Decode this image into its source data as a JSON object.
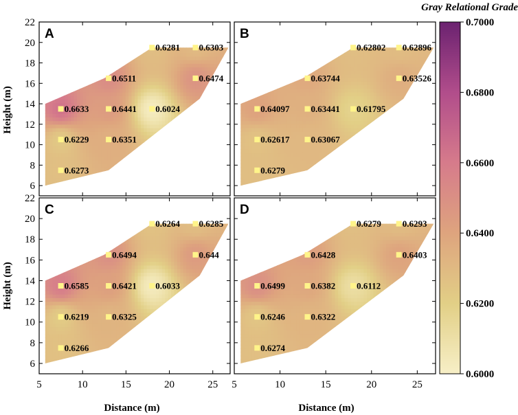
{
  "chart_data": {
    "type": "heatmap",
    "colorbar": {
      "title": "Gray Relational Grade",
      "min": 0.6,
      "max": 0.7,
      "ticks": [
        0.6,
        0.62,
        0.64,
        0.66,
        0.68,
        0.7
      ],
      "tick_labels": [
        "0.6000",
        "0.6200",
        "0.6400",
        "0.6600",
        "0.6800",
        "0.7000"
      ],
      "colors": [
        "#f7efc7",
        "#e2cf86",
        "#dea47e",
        "#d67b8b",
        "#b14d8b",
        "#6b2270"
      ]
    },
    "xlim": [
      5,
      27
    ],
    "ylim": [
      5,
      22
    ],
    "x_ticks": [
      5,
      10,
      15,
      20,
      25
    ],
    "y_ticks": [
      6,
      8,
      10,
      12,
      14,
      16,
      18,
      20,
      22
    ],
    "xlabel": "Distance (m)",
    "ylabel": "Height (m)",
    "hull": [
      [
        5.7,
        6
      ],
      [
        13,
        7.5
      ],
      [
        23.5,
        14.5
      ],
      [
        26.8,
        19.5
      ],
      [
        18,
        19.5
      ],
      [
        12.5,
        16.5
      ],
      [
        5.7,
        14
      ]
    ],
    "panels": [
      {
        "letter": "A",
        "points": [
          {
            "x": 18,
            "y": 19.5,
            "label": "0.6281"
          },
          {
            "x": 23,
            "y": 19.5,
            "label": "0.6303"
          },
          {
            "x": 13,
            "y": 16.5,
            "label": "0.6511"
          },
          {
            "x": 23,
            "y": 16.5,
            "label": "0.6474"
          },
          {
            "x": 7.5,
            "y": 13.5,
            "label": "0.6633"
          },
          {
            "x": 13,
            "y": 13.5,
            "label": "0.6441"
          },
          {
            "x": 18,
            "y": 13.5,
            "label": "0.6024"
          },
          {
            "x": 7.5,
            "y": 10.5,
            "label": "0.6229"
          },
          {
            "x": 13,
            "y": 10.5,
            "label": "0.6351"
          },
          {
            "x": 7.5,
            "y": 7.5,
            "label": "0.6273"
          }
        ]
      },
      {
        "letter": "B",
        "points": [
          {
            "x": 18,
            "y": 19.5,
            "label": "0.62802"
          },
          {
            "x": 23,
            "y": 19.5,
            "label": "0.62896"
          },
          {
            "x": 13,
            "y": 16.5,
            "label": "0.63744"
          },
          {
            "x": 23,
            "y": 16.5,
            "label": "0.63526"
          },
          {
            "x": 7.5,
            "y": 13.5,
            "label": "0.64097"
          },
          {
            "x": 13,
            "y": 13.5,
            "label": "0.63441"
          },
          {
            "x": 18,
            "y": 13.5,
            "label": "0.61795"
          },
          {
            "x": 7.5,
            "y": 10.5,
            "label": "0.62617"
          },
          {
            "x": 13,
            "y": 10.5,
            "label": "0.63067"
          },
          {
            "x": 7.5,
            "y": 7.5,
            "label": "0.6279"
          }
        ]
      },
      {
        "letter": "C",
        "points": [
          {
            "x": 18,
            "y": 19.5,
            "label": "0.6264"
          },
          {
            "x": 23,
            "y": 19.5,
            "label": "0.6285"
          },
          {
            "x": 13,
            "y": 16.5,
            "label": "0.6494"
          },
          {
            "x": 23,
            "y": 16.5,
            "label": "0.644"
          },
          {
            "x": 7.5,
            "y": 13.5,
            "label": "0.6585"
          },
          {
            "x": 13,
            "y": 13.5,
            "label": "0.6421"
          },
          {
            "x": 18,
            "y": 13.5,
            "label": "0.6033"
          },
          {
            "x": 7.5,
            "y": 10.5,
            "label": "0.6219"
          },
          {
            "x": 13,
            "y": 10.5,
            "label": "0.6325"
          },
          {
            "x": 7.5,
            "y": 7.5,
            "label": "0.6266"
          }
        ]
      },
      {
        "letter": "D",
        "points": [
          {
            "x": 18,
            "y": 19.5,
            "label": "0.6279"
          },
          {
            "x": 23,
            "y": 19.5,
            "label": "0.6293"
          },
          {
            "x": 13,
            "y": 16.5,
            "label": "0.6428"
          },
          {
            "x": 23,
            "y": 16.5,
            "label": "0.6403"
          },
          {
            "x": 7.5,
            "y": 13.5,
            "label": "0.6499"
          },
          {
            "x": 13,
            "y": 13.5,
            "label": "0.6382"
          },
          {
            "x": 18,
            "y": 13.5,
            "label": "0.6112"
          },
          {
            "x": 7.5,
            "y": 10.5,
            "label": "0.6246"
          },
          {
            "x": 13,
            "y": 10.5,
            "label": "0.6322"
          },
          {
            "x": 7.5,
            "y": 7.5,
            "label": "0.6274"
          }
        ]
      }
    ]
  }
}
